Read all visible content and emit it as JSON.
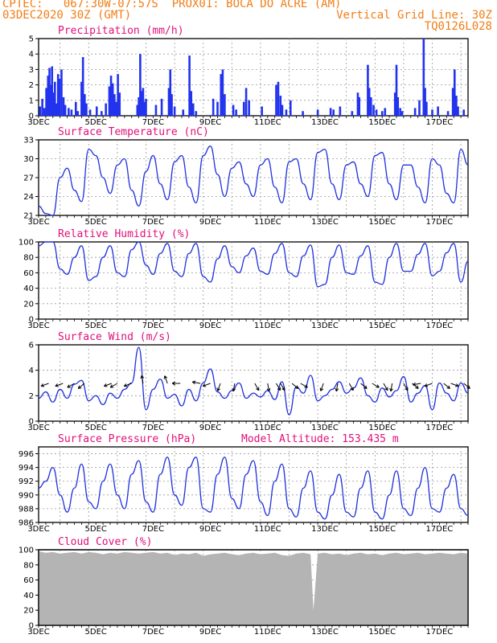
{
  "header": {
    "left_line1": "CPTEC:   067:30W-07:57S  PROX01: BOCA DO ACRE (AM)",
    "left_line2": "03DEC2020 30Z (GMT)",
    "right_line2": "Vertical Grid Line: 30Z",
    "right_line3": "TQ0126L028"
  },
  "colors": {
    "header": "#f07e18",
    "title": "#e0107a",
    "line": "#2233dd",
    "bar": "#2233ee",
    "cloud": "#b4b4b4"
  },
  "chart_data": [
    {
      "type": "bar",
      "title": "Precipitation (mm/h)",
      "ylim": [
        0,
        5
      ],
      "yticks": [
        0,
        1,
        2,
        3,
        4,
        5
      ],
      "xticks": [
        "3DEC",
        "5DEC",
        "7DEC",
        "9DEC",
        "11DEC",
        "13DEC",
        "15DEC",
        "17DEC"
      ],
      "x_day_range": [
        3.25,
        18.25
      ],
      "bars": [
        [
          3.3,
          0.6
        ],
        [
          3.38,
          1.1
        ],
        [
          3.45,
          0.5
        ],
        [
          3.52,
          1.8
        ],
        [
          3.58,
          2.6
        ],
        [
          3.63,
          3.1
        ],
        [
          3.68,
          2.0
        ],
        [
          3.72,
          3.2
        ],
        [
          3.78,
          1.5
        ],
        [
          3.82,
          2.2
        ],
        [
          3.88,
          0.8
        ],
        [
          3.93,
          2.7
        ],
        [
          3.98,
          2.4
        ],
        [
          4.05,
          3.0
        ],
        [
          4.12,
          1.2
        ],
        [
          4.18,
          0.7
        ],
        [
          4.3,
          0.5
        ],
        [
          4.4,
          0.4
        ],
        [
          4.55,
          0.9
        ],
        [
          4.62,
          0.3
        ],
        [
          4.75,
          2.2
        ],
        [
          4.8,
          3.8
        ],
        [
          4.86,
          1.4
        ],
        [
          4.92,
          0.8
        ],
        [
          5.05,
          0.4
        ],
        [
          5.28,
          0.6
        ],
        [
          5.45,
          0.3
        ],
        [
          5.6,
          0.8
        ],
        [
          5.72,
          1.9
        ],
        [
          5.78,
          2.6
        ],
        [
          5.84,
          2.1
        ],
        [
          5.9,
          1.4
        ],
        [
          5.96,
          0.9
        ],
        [
          6.02,
          2.7
        ],
        [
          6.08,
          1.5
        ],
        [
          6.7,
          0.7
        ],
        [
          6.75,
          1.2
        ],
        [
          6.8,
          4.0
        ],
        [
          6.85,
          1.6
        ],
        [
          6.9,
          1.8
        ],
        [
          6.95,
          0.9
        ],
        [
          7.0,
          1.1
        ],
        [
          7.35,
          0.7
        ],
        [
          7.55,
          1.1
        ],
        [
          7.8,
          1.8
        ],
        [
          7.85,
          3.0
        ],
        [
          7.9,
          1.4
        ],
        [
          8.0,
          0.6
        ],
        [
          8.3,
          0.4
        ],
        [
          8.52,
          3.9
        ],
        [
          8.58,
          1.6
        ],
        [
          8.65,
          0.8
        ],
        [
          8.75,
          0.3
        ],
        [
          9.35,
          1.1
        ],
        [
          9.5,
          0.9
        ],
        [
          9.62,
          2.7
        ],
        [
          9.68,
          3.0
        ],
        [
          9.75,
          1.4
        ],
        [
          10.05,
          0.7
        ],
        [
          10.15,
          0.4
        ],
        [
          10.42,
          0.9
        ],
        [
          10.5,
          1.8
        ],
        [
          10.6,
          1.0
        ],
        [
          11.05,
          0.6
        ],
        [
          11.55,
          2.0
        ],
        [
          11.62,
          2.2
        ],
        [
          11.7,
          1.3
        ],
        [
          11.76,
          0.7
        ],
        [
          11.9,
          0.4
        ],
        [
          12.05,
          1.0
        ],
        [
          12.48,
          0.3
        ],
        [
          13.0,
          0.4
        ],
        [
          13.45,
          0.5
        ],
        [
          13.55,
          0.4
        ],
        [
          13.78,
          0.6
        ],
        [
          14.2,
          0.3
        ],
        [
          14.4,
          1.5
        ],
        [
          14.45,
          1.2
        ],
        [
          14.75,
          3.3
        ],
        [
          14.8,
          1.8
        ],
        [
          14.86,
          1.2
        ],
        [
          14.95,
          0.7
        ],
        [
          15.05,
          0.4
        ],
        [
          15.25,
          0.3
        ],
        [
          15.35,
          0.5
        ],
        [
          15.7,
          1.5
        ],
        [
          15.75,
          3.3
        ],
        [
          15.8,
          1.2
        ],
        [
          15.88,
          0.5
        ],
        [
          15.95,
          0.3
        ],
        [
          16.4,
          0.5
        ],
        [
          16.55,
          1.0
        ],
        [
          16.7,
          5.0
        ],
        [
          16.75,
          1.8
        ],
        [
          16.8,
          0.9
        ],
        [
          17.0,
          0.4
        ],
        [
          17.2,
          0.6
        ],
        [
          17.55,
          0.3
        ],
        [
          17.72,
          1.8
        ],
        [
          17.78,
          3.0
        ],
        [
          17.84,
          1.3
        ],
        [
          17.9,
          0.6
        ],
        [
          18.1,
          0.4
        ]
      ]
    },
    {
      "type": "line",
      "title": "Surface Temperature (nC)",
      "ylim": [
        21,
        33
      ],
      "yticks": [
        21,
        24,
        27,
        30,
        33
      ],
      "xticks": [
        "3DEC",
        "5DEC",
        "7DEC",
        "9DEC",
        "11DEC",
        "13DEC",
        "15DEC",
        "17DEC"
      ],
      "x": [
        3.25,
        3.5,
        3.75,
        4.0,
        4.25,
        4.5,
        4.75,
        5.0,
        5.25,
        5.5,
        5.75,
        6.0,
        6.25,
        6.5,
        6.75,
        7.0,
        7.25,
        7.5,
        7.75,
        8.0,
        8.25,
        8.5,
        8.75,
        9.0,
        9.25,
        9.5,
        9.75,
        10.0,
        10.25,
        10.5,
        10.75,
        11.0,
        11.25,
        11.5,
        11.75,
        12.0,
        12.25,
        12.5,
        12.75,
        13.0,
        13.25,
        13.5,
        13.75,
        14.0,
        14.25,
        14.5,
        14.75,
        15.0,
        15.25,
        15.5,
        15.75,
        16.0,
        16.25,
        16.5,
        16.75,
        17.0,
        17.25,
        17.5,
        17.75,
        18.0,
        18.25
      ],
      "y": [
        22.5,
        21.3,
        21.0,
        27.0,
        28.5,
        25.0,
        23.2,
        31.5,
        30.5,
        27.0,
        24.5,
        29.0,
        30.0,
        25.0,
        22.5,
        28.0,
        30.5,
        26.0,
        23.5,
        29.5,
        30.5,
        25.5,
        23.0,
        30.5,
        32.0,
        27.5,
        24.0,
        28.5,
        29.5,
        26.0,
        24.0,
        29.0,
        30.0,
        25.5,
        23.0,
        29.5,
        30.0,
        26.0,
        23.5,
        31.0,
        31.5,
        26.0,
        23.5,
        29.0,
        29.5,
        26.0,
        24.0,
        30.5,
        31.0,
        26.0,
        23.5,
        29.0,
        29.0,
        25.5,
        23.0,
        30.0,
        29.0,
        24.5,
        23.0,
        31.5,
        29.0
      ]
    },
    {
      "type": "line",
      "title": "Relative Humidity (%)",
      "ylim": [
        0,
        100
      ],
      "yticks": [
        0,
        20,
        40,
        60,
        80,
        100
      ],
      "xticks": [
        "3DEC",
        "5DEC",
        "7DEC",
        "9DEC",
        "11DEC",
        "13DEC",
        "15DEC",
        "17DEC"
      ],
      "x": [
        3.25,
        3.5,
        3.75,
        4.0,
        4.25,
        4.5,
        4.75,
        5.0,
        5.25,
        5.5,
        5.75,
        6.0,
        6.25,
        6.5,
        6.75,
        7.0,
        7.25,
        7.5,
        7.75,
        8.0,
        8.25,
        8.5,
        8.75,
        9.0,
        9.25,
        9.5,
        9.75,
        10.0,
        10.25,
        10.5,
        10.75,
        11.0,
        11.25,
        11.5,
        11.75,
        12.0,
        12.25,
        12.5,
        12.75,
        13.0,
        13.25,
        13.5,
        13.75,
        14.0,
        14.25,
        14.5,
        14.75,
        15.0,
        15.25,
        15.5,
        15.75,
        16.0,
        16.25,
        16.5,
        16.75,
        17.0,
        17.25,
        17.5,
        17.75,
        18.0,
        18.25
      ],
      "y": [
        95,
        100,
        100,
        65,
        58,
        80,
        95,
        50,
        55,
        80,
        95,
        60,
        55,
        90,
        100,
        70,
        58,
        85,
        98,
        62,
        55,
        85,
        98,
        55,
        48,
        78,
        95,
        68,
        60,
        82,
        92,
        62,
        58,
        85,
        98,
        60,
        55,
        82,
        96,
        42,
        45,
        80,
        96,
        60,
        58,
        82,
        95,
        48,
        45,
        80,
        98,
        62,
        62,
        84,
        98,
        56,
        62,
        86,
        98,
        48,
        75
      ]
    },
    {
      "type": "line",
      "title": "Surface Wind (m/s)",
      "ylim": [
        0,
        6
      ],
      "yticks": [
        0,
        2,
        4,
        6
      ],
      "xticks": [
        "3DEC",
        "5DEC",
        "7DEC",
        "9DEC",
        "11DEC",
        "13DEC",
        "15DEC",
        "17DEC"
      ],
      "x": [
        3.25,
        3.5,
        3.75,
        4.0,
        4.25,
        4.5,
        4.75,
        5.0,
        5.25,
        5.5,
        5.75,
        6.0,
        6.25,
        6.5,
        6.75,
        7.0,
        7.25,
        7.5,
        7.75,
        8.0,
        8.25,
        8.5,
        8.75,
        9.0,
        9.25,
        9.5,
        9.75,
        10.0,
        10.25,
        10.5,
        10.75,
        11.0,
        11.25,
        11.5,
        11.75,
        12.0,
        12.25,
        12.5,
        12.75,
        13.0,
        13.25,
        13.5,
        13.75,
        14.0,
        14.25,
        14.5,
        14.75,
        15.0,
        15.25,
        15.5,
        15.75,
        16.0,
        16.25,
        16.5,
        16.75,
        17.0,
        17.25,
        17.5,
        17.75,
        18.0,
        18.25
      ],
      "y": [
        1.8,
        2.3,
        1.5,
        2.5,
        1.8,
        2.9,
        3.2,
        1.6,
        2.0,
        1.3,
        2.2,
        1.8,
        2.5,
        3.0,
        5.8,
        0.9,
        2.5,
        3.3,
        1.8,
        2.1,
        1.2,
        2.5,
        1.6,
        3.0,
        4.1,
        2.3,
        1.8,
        2.4,
        3.0,
        1.8,
        2.2,
        1.9,
        2.4,
        1.7,
        3.1,
        0.5,
        2.7,
        2.2,
        3.6,
        1.6,
        2.0,
        2.5,
        3.1,
        2.2,
        2.6,
        3.4,
        2.0,
        1.5,
        2.6,
        1.9,
        2.4,
        3.5,
        1.5,
        2.2,
        2.8,
        0.9,
        3.0,
        2.2,
        1.6,
        3.0,
        2.2
      ]
    },
    {
      "type": "line",
      "title": "Surface Pressure (hPa)",
      "annotation": "Model Altitude: 153.435  m",
      "ylim": [
        986,
        997
      ],
      "yticks": [
        986,
        988,
        990,
        992,
        994,
        996
      ],
      "xticks": [
        "3DEC",
        "5DEC",
        "7DEC",
        "9DEC",
        "11DEC",
        "13DEC",
        "15DEC",
        "17DEC"
      ],
      "x": [
        3.25,
        3.5,
        3.75,
        4.0,
        4.25,
        4.5,
        4.75,
        5.0,
        5.25,
        5.5,
        5.75,
        6.0,
        6.25,
        6.5,
        6.75,
        7.0,
        7.25,
        7.5,
        7.75,
        8.0,
        8.25,
        8.5,
        8.75,
        9.0,
        9.25,
        9.5,
        9.75,
        10.0,
        10.25,
        10.5,
        10.75,
        11.0,
        11.25,
        11.5,
        11.75,
        12.0,
        12.25,
        12.5,
        12.75,
        13.0,
        13.25,
        13.5,
        13.75,
        14.0,
        14.25,
        14.5,
        14.75,
        15.0,
        15.25,
        15.5,
        15.75,
        16.0,
        16.25,
        16.5,
        16.75,
        17.0,
        17.25,
        17.5,
        17.75,
        18.0,
        18.25
      ],
      "y": [
        991,
        992,
        994,
        990,
        987.5,
        991,
        994.5,
        989,
        988,
        992,
        994.5,
        990,
        988,
        993,
        995,
        989,
        987.5,
        993,
        995.5,
        990,
        988.5,
        994,
        995.5,
        988,
        987.5,
        993,
        995.5,
        989.5,
        988,
        993,
        995,
        989,
        987,
        992,
        994.5,
        988,
        986.8,
        991,
        993.5,
        987.5,
        986.5,
        990,
        993,
        987.5,
        986.8,
        991,
        993.5,
        987.5,
        986.5,
        990,
        993.5,
        988,
        987,
        991,
        994,
        988,
        987.5,
        991,
        993,
        988,
        987
      ]
    },
    {
      "type": "area",
      "title": "Cloud Cover (%)",
      "ylim": [
        0,
        100
      ],
      "yticks": [
        0,
        20,
        40,
        60,
        80,
        100
      ],
      "xticks": [
        "3DEC",
        "5DEC",
        "7DEC",
        "9DEC",
        "11DEC",
        "13DEC",
        "15DEC",
        "17DEC"
      ],
      "x": [
        3.25,
        3.5,
        3.75,
        4.0,
        4.25,
        4.5,
        4.75,
        5.0,
        5.25,
        5.5,
        5.75,
        6.0,
        6.25,
        6.5,
        6.75,
        7.0,
        7.25,
        7.5,
        7.75,
        8.0,
        8.25,
        8.5,
        8.75,
        9.0,
        9.25,
        9.5,
        9.75,
        10.0,
        10.25,
        10.5,
        10.75,
        11.0,
        11.25,
        11.5,
        11.75,
        12.0,
        12.25,
        12.5,
        12.75,
        12.85,
        13.0,
        13.25,
        13.5,
        13.75,
        14.0,
        14.25,
        14.5,
        14.75,
        15.0,
        15.25,
        15.5,
        15.75,
        16.0,
        16.25,
        16.5,
        16.75,
        17.0,
        17.25,
        17.5,
        17.75,
        18.0,
        18.25
      ],
      "y": [
        98,
        96,
        97,
        95,
        96,
        97,
        95,
        97,
        96,
        94,
        96,
        95,
        97,
        96,
        95,
        96,
        97,
        95,
        96,
        93,
        95,
        94,
        96,
        92,
        94,
        95,
        96,
        94,
        93,
        95,
        96,
        94,
        95,
        96,
        93,
        92,
        95,
        96,
        94,
        20,
        95,
        96,
        94,
        95,
        93,
        95,
        96,
        94,
        95,
        93,
        95,
        96,
        94,
        95,
        96,
        94,
        95,
        96,
        95,
        94,
        96,
        95
      ]
    }
  ]
}
